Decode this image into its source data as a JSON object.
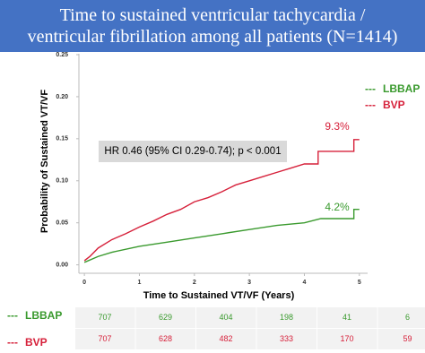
{
  "chart_data": {
    "type": "line",
    "title": "Time to sustained ventricular tachycardia / ventricular fibrillation among all patients (N=1414)",
    "xlabel": "Time to Sustained VT/VF (Years)",
    "ylabel": "Probability of Sustained VT/VF",
    "xlim": [
      -0.1,
      5.15
    ],
    "ylim": [
      -0.01,
      0.25
    ],
    "xticks": [
      0,
      1,
      2,
      3,
      4,
      5
    ],
    "yticks": [
      {
        "value": 0,
        "label": "0.00"
      },
      {
        "value": 0.05,
        "label": "0.05"
      },
      {
        "value": 0.1,
        "label": "0.10"
      },
      {
        "value": 0.15,
        "label": "0.15"
      },
      {
        "value": 0.2,
        "label": "0.20"
      },
      {
        "value": 0.25,
        "label": "0.25"
      }
    ],
    "series": [
      {
        "name": "LBBAP",
        "color": "#3a9a2e",
        "x": [
          0,
          0.25,
          0.5,
          1,
          1.5,
          2,
          2.5,
          3,
          3.5,
          4,
          4.3,
          4.9,
          4.9,
          5
        ],
        "values": [
          0.003,
          0.01,
          0.015,
          0.022,
          0.027,
          0.032,
          0.037,
          0.042,
          0.047,
          0.05,
          0.055,
          0.055,
          0.066,
          0.066
        ]
      },
      {
        "name": "BVP",
        "color": "#d6203a",
        "x": [
          0,
          0.1,
          0.25,
          0.5,
          0.75,
          1,
          1.25,
          1.5,
          1.75,
          2,
          2.25,
          2.5,
          2.75,
          3,
          3.25,
          3.5,
          3.75,
          4,
          4.25,
          4.25,
          4.9,
          4.9,
          5
        ],
        "values": [
          0.005,
          0.01,
          0.02,
          0.03,
          0.037,
          0.045,
          0.052,
          0.06,
          0.066,
          0.075,
          0.08,
          0.087,
          0.095,
          0.1,
          0.105,
          0.11,
          0.115,
          0.12,
          0.12,
          0.135,
          0.135,
          0.149,
          0.149
        ]
      }
    ],
    "legend_marker": "---",
    "annotation": "HR 0.46 (95% CI 0.29-0.74); p < 0.001",
    "end_labels": [
      "4.2%",
      "9.3%"
    ],
    "risk_table": [
      [
        707,
        629,
        404,
        198,
        41,
        6
      ],
      [
        707,
        628,
        482,
        333,
        170,
        59
      ]
    ]
  }
}
